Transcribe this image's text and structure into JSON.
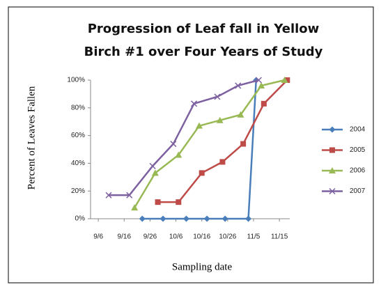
{
  "chart_data": {
    "type": "line",
    "title": [
      "Progression of Leaf fall in Yellow",
      "Birch #1 over Four Years of Study"
    ],
    "x_label": "Sampling date",
    "y_label": "Percent of Leaves Fallen",
    "xlim": [
      "9/3",
      "11/19"
    ],
    "xticks": [
      "9/6",
      "9/16",
      "9/26",
      "10/6",
      "10/16",
      "10/26",
      "11/5",
      "11/15"
    ],
    "ylim": [
      0,
      100
    ],
    "yticks": [
      {
        "value": 0,
        "label": "0%"
      },
      {
        "value": 20,
        "label": "20%"
      },
      {
        "value": 40,
        "label": "40%"
      },
      {
        "value": 60,
        "label": "60%"
      },
      {
        "value": 80,
        "label": "80%"
      },
      {
        "value": 100,
        "label": "100%"
      }
    ],
    "grid": false,
    "legend": "right",
    "series": [
      {
        "name": "2004",
        "color": "#4a7ebb",
        "marker": "diamond",
        "x": [
          "9/23",
          "10/1",
          "10/10",
          "10/18",
          "10/25",
          "11/3",
          "11/6"
        ],
        "values": [
          0,
          0,
          0,
          0,
          0,
          0,
          100
        ]
      },
      {
        "name": "2005",
        "color": "#be4b48",
        "marker": "square",
        "x": [
          "9/29",
          "10/7",
          "10/16",
          "10/24",
          "11/1",
          "11/9",
          "11/18"
        ],
        "values": [
          12,
          12,
          33,
          41,
          54,
          83,
          100
        ]
      },
      {
        "name": "2006",
        "color": "#98b954",
        "marker": "triangle",
        "x": [
          "9/20",
          "9/28",
          "10/7",
          "10/15",
          "10/23",
          "10/31",
          "11/8",
          "11/17"
        ],
        "values": [
          8,
          33,
          46,
          67,
          71,
          75,
          96,
          100
        ]
      },
      {
        "name": "2007",
        "color": "#7d60a0",
        "marker": "x",
        "x": [
          "9/10",
          "9/18",
          "9/27",
          "10/5",
          "10/13",
          "10/22",
          "10/30",
          "11/7"
        ],
        "values": [
          17,
          17,
          38,
          54,
          83,
          88,
          96,
          100
        ]
      }
    ]
  }
}
